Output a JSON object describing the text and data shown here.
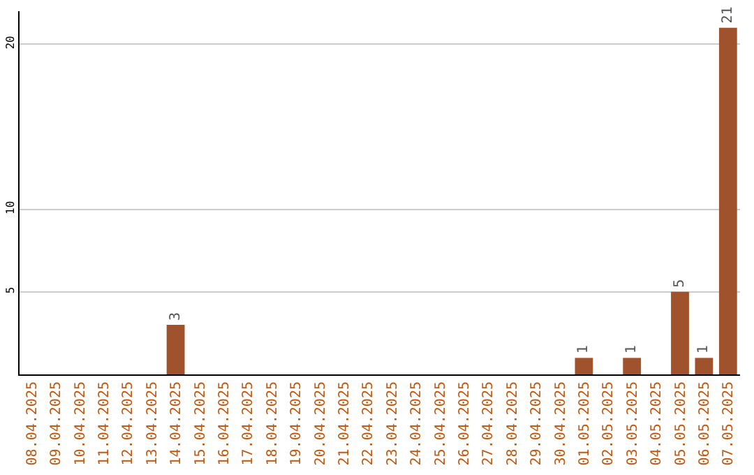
{
  "chart_data": {
    "type": "bar",
    "categories": [
      "08.04.2025",
      "09.04.2025",
      "10.04.2025",
      "11.04.2025",
      "12.04.2025",
      "13.04.2025",
      "14.04.2025",
      "15.04.2025",
      "16.04.2025",
      "17.04.2025",
      "18.04.2025",
      "19.04.2025",
      "20.04.2025",
      "21.04.2025",
      "22.04.2025",
      "23.04.2025",
      "24.04.2025",
      "25.04.2025",
      "26.04.2025",
      "27.04.2025",
      "28.04.2025",
      "29.04.2025",
      "30.04.2025",
      "01.05.2025",
      "02.05.2025",
      "03.05.2025",
      "04.05.2025",
      "05.05.2025",
      "06.05.2025",
      "07.05.2025"
    ],
    "values": [
      0,
      0,
      0,
      0,
      0,
      0,
      3,
      0,
      0,
      0,
      0,
      0,
      0,
      0,
      0,
      0,
      0,
      0,
      0,
      0,
      0,
      0,
      0,
      1,
      0,
      1,
      0,
      5,
      1,
      21
    ],
    "value_labels": [
      null,
      null,
      null,
      null,
      null,
      null,
      "3",
      null,
      null,
      null,
      null,
      null,
      null,
      null,
      null,
      null,
      null,
      null,
      null,
      null,
      null,
      null,
      null,
      "1",
      null,
      "1",
      null,
      "5",
      "1",
      "21"
    ],
    "color": "#a0522d",
    "ylim": [
      0,
      22
    ],
    "yticks": [
      5,
      10,
      20
    ],
    "grid": "y",
    "legend": false
  }
}
